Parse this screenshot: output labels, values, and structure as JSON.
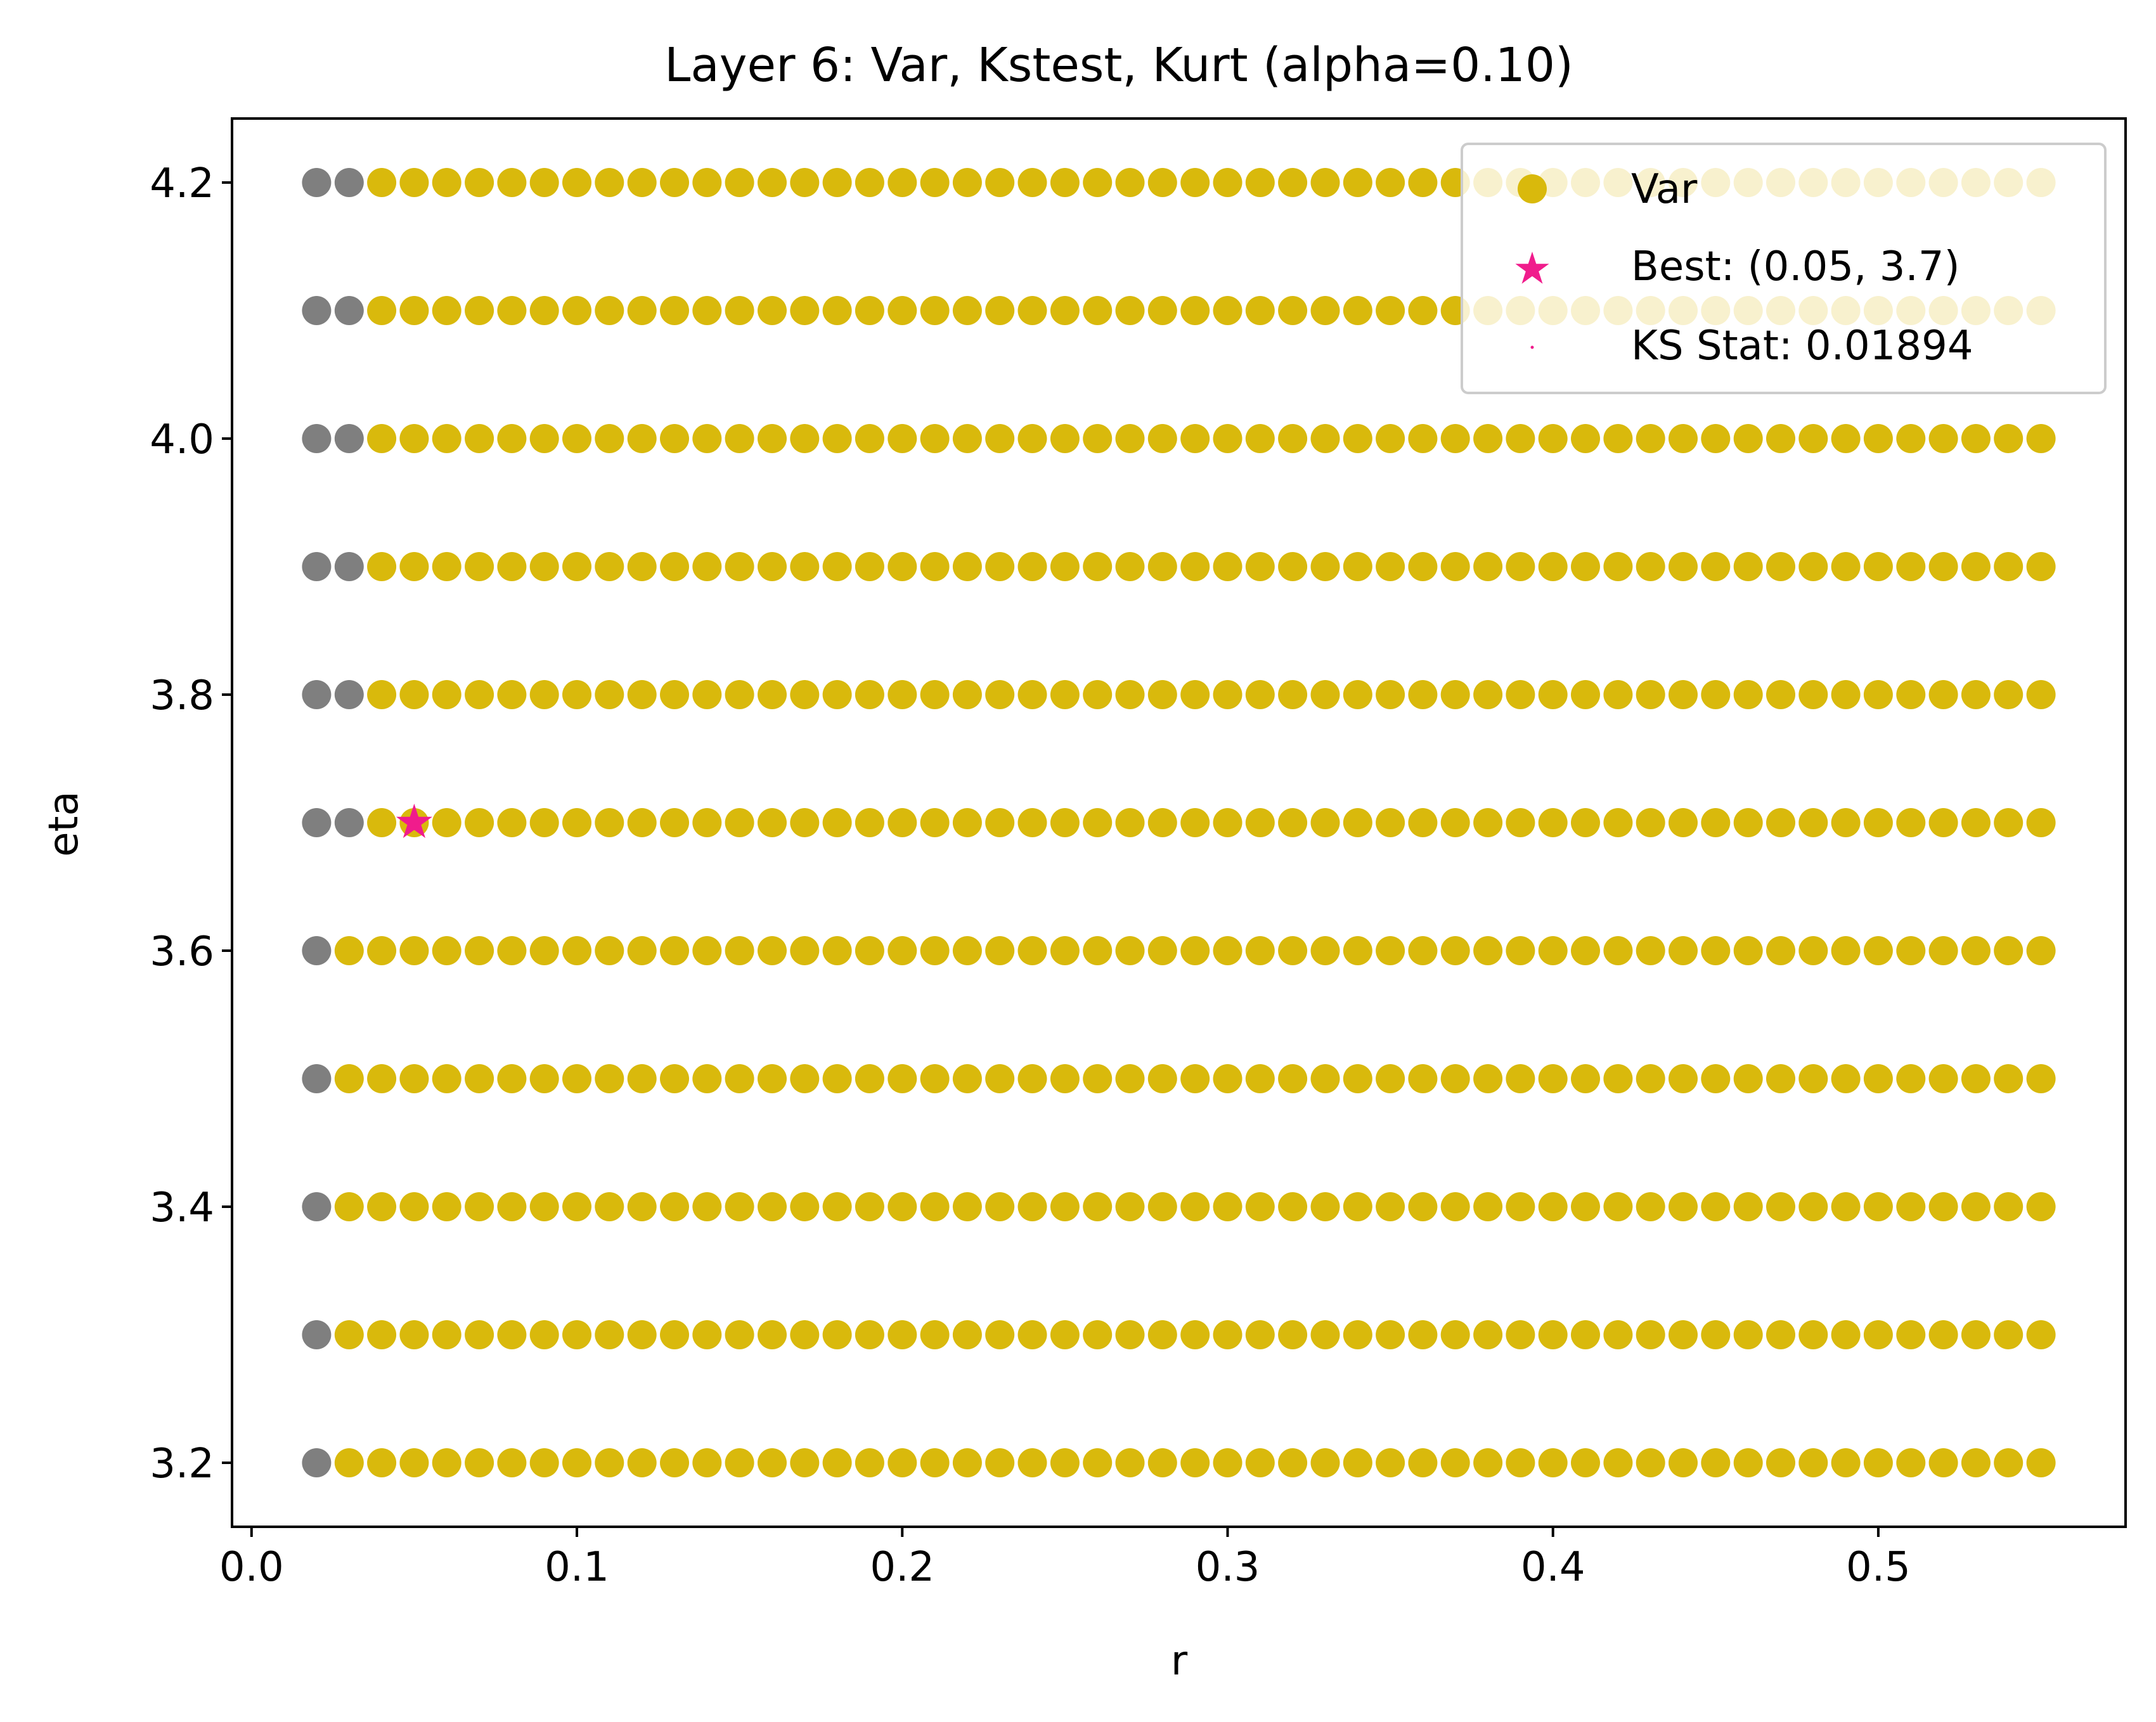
{
  "chart_data": {
    "type": "scatter",
    "title": "Layer 6: Var, Kstest, Kurt (alpha=0.10)",
    "xlabel": "r",
    "ylabel": "eta",
    "xlim": [
      -0.006,
      0.576
    ],
    "ylim": [
      3.15,
      4.25
    ],
    "x_ticks": [
      0.0,
      0.1,
      0.2,
      0.3,
      0.4,
      0.5
    ],
    "x_tick_labels": [
      "0.0",
      "0.1",
      "0.2",
      "0.3",
      "0.4",
      "0.5"
    ],
    "y_ticks": [
      3.2,
      3.4,
      3.6,
      3.8,
      4.0,
      4.2
    ],
    "y_tick_labels": [
      "3.2",
      "3.4",
      "3.6",
      "3.8",
      "4.0",
      "4.2"
    ],
    "grid": false,
    "legend_position": "top-right",
    "grid_points": {
      "r_start": 0.02,
      "r_end": 0.55,
      "r_step": 0.01,
      "eta_values": [
        3.2,
        3.3,
        3.4,
        3.5,
        3.6,
        3.7,
        3.8,
        3.9,
        4.0,
        4.1,
        4.2
      ]
    },
    "invalid_points": {
      "description_color": "gray",
      "rule": "r = 0.02 for all eta; r = 0.03 for eta >= 3.7"
    },
    "series": [
      {
        "name": "Var",
        "marker": "circle",
        "color": "#d9b90c"
      }
    ],
    "invalid_color": "#7f7f7f",
    "best": {
      "r": 0.05,
      "eta": 3.7,
      "color": "#f01c8c"
    },
    "legend": {
      "entries": [
        {
          "label": "Var",
          "marker": "circle",
          "color": "#d9b90c"
        },
        {
          "label": "Best: (0.05, 3.7)",
          "marker": "star",
          "color": "#f01c8c"
        },
        {
          "label": "KS Stat: 0.01894",
          "marker": "dot",
          "color": "#f01c8c"
        }
      ]
    }
  }
}
